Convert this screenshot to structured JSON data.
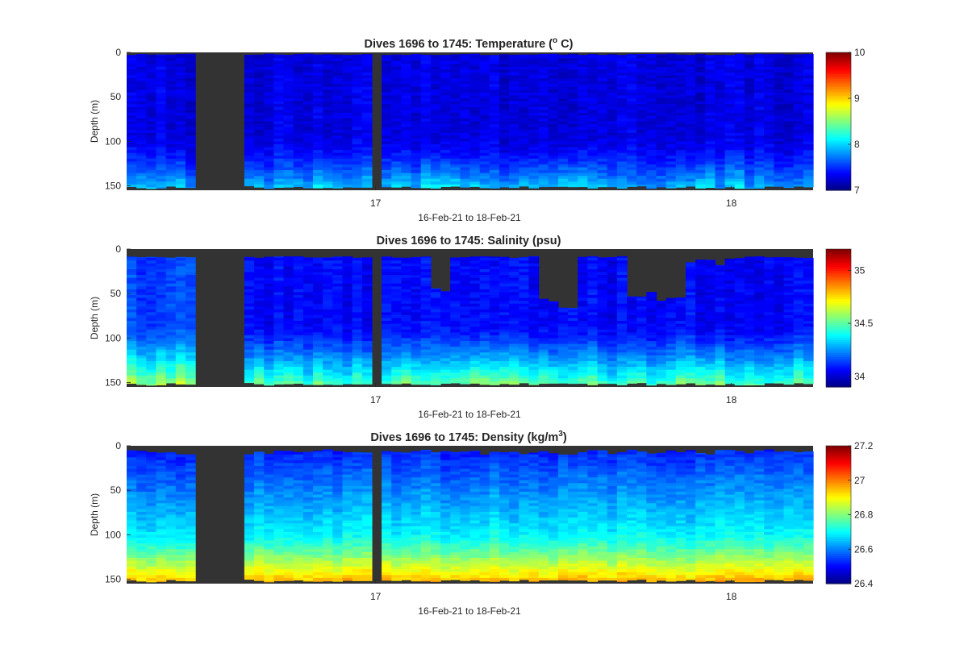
{
  "figure": {
    "background": "#ffffff",
    "gap_color": "#333333",
    "colormap": "jet"
  },
  "chart_data": [
    {
      "type": "heatmap",
      "title": "Dives 1696 to 1745: Temperature (",
      "title_sup": "o",
      "title_end": " C)",
      "xlabel": "16-Feb-21 to 18-Feb-21",
      "ylabel": "Depth (m)",
      "variable": "temperature",
      "y_reversed": true,
      "ylim": [
        0,
        155
      ],
      "yticks": [
        "0",
        "50",
        "100",
        "150"
      ],
      "xticks": [
        "17",
        "18"
      ],
      "x_range_days": [
        16.3,
        18.23
      ],
      "colorbar": {
        "ticks": [
          "7",
          "8",
          "9",
          "10"
        ],
        "range": [
          7,
          10
        ]
      },
      "value_ranges": {
        "surface": "7.1-7.4",
        "bottom": "7.6-8.0"
      },
      "no_data_intervals": [
        "16.49-16.64",
        "16.989-17.01"
      ]
    },
    {
      "type": "heatmap",
      "title": "Dives 1696 to 1745: Salinity (psu)",
      "title_sup": "",
      "title_end": "",
      "xlabel": "16-Feb-21 to 18-Feb-21",
      "ylabel": "Depth (m)",
      "variable": "salinity",
      "y_reversed": true,
      "ylim": [
        0,
        155
      ],
      "yticks": [
        "0",
        "50",
        "100",
        "150"
      ],
      "xticks": [
        "17",
        "18"
      ],
      "x_range_days": [
        16.3,
        18.23
      ],
      "colorbar": {
        "ticks": [
          "34",
          "34.5",
          "35"
        ],
        "range": [
          33.9,
          35.2
        ]
      },
      "value_ranges": {
        "surface": "34.00-34.10",
        "bottom": "34.45-34.70"
      },
      "no_data_intervals": [
        "16.49-16.64",
        "16.989-17.01"
      ]
    },
    {
      "type": "heatmap",
      "title": "Dives 1696 to 1745: Density (kg/m",
      "title_sup": "3",
      "title_end": ")",
      "xlabel": "16-Feb-21 to 18-Feb-21",
      "ylabel": "Depth (m)",
      "variable": "density",
      "y_reversed": true,
      "ylim": [
        0,
        155
      ],
      "yticks": [
        "0",
        "50",
        "100",
        "150"
      ],
      "xticks": [
        "17",
        "18"
      ],
      "x_range_days": [
        16.3,
        18.23
      ],
      "colorbar": {
        "ticks": [
          "26.4",
          "26.6",
          "26.8",
          "27",
          "27.2"
        ],
        "range": [
          26.4,
          27.2
        ]
      },
      "value_ranges": {
        "surface": "26.45-26.60",
        "bottom": "26.85-26.95"
      },
      "no_data_intervals": [
        "16.49-16.64",
        "16.989-17.01"
      ]
    }
  ]
}
